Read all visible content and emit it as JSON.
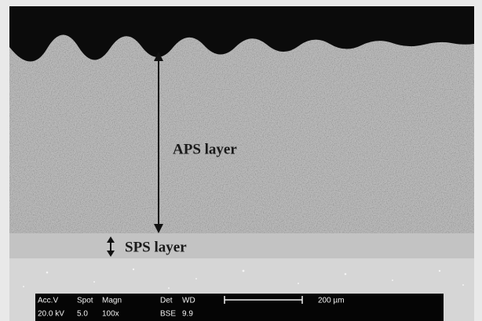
{
  "annotations": {
    "aps_label": "APS layer",
    "sps_label": "SPS layer"
  },
  "info_bar": {
    "headers": [
      "Acc.V",
      "Spot",
      "Magn",
      "Det",
      "WD"
    ],
    "values": [
      "20.0 kV",
      "5.0",
      "100x",
      "BSE",
      "9.9"
    ],
    "scale_label": "200 µm"
  }
}
